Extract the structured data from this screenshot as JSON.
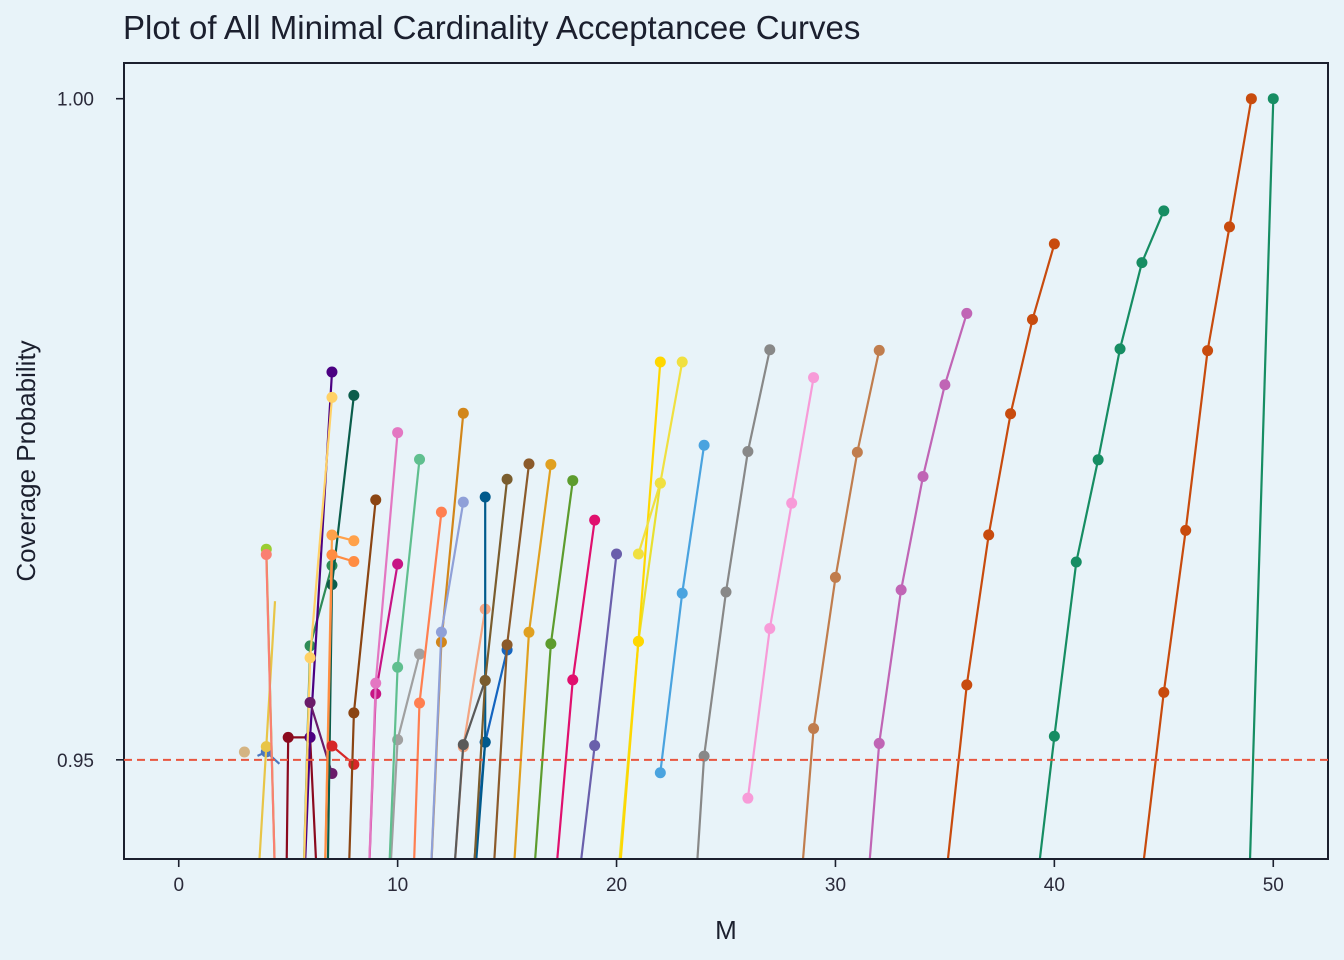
{
  "chart_data": {
    "type": "line",
    "title": "Plot of All Minimal Cardinality Acceptancee Curves",
    "xlabel": "M",
    "ylabel": "Coverage Probability",
    "xlim": [
      -2.5,
      52.5
    ],
    "ylim": [
      0.9425,
      1.0027
    ],
    "xticks": [
      0,
      10,
      20,
      30,
      40,
      50
    ],
    "yticks": [
      0.95,
      1.0
    ],
    "ytick_labels": [
      "0.95",
      "1.00"
    ],
    "reference_line": {
      "y": 0.95,
      "color": "#e8563f",
      "style": "dashed"
    },
    "grid": false,
    "legend": false,
    "series": [
      {
        "color": "#d4b483",
        "x": [
          3
        ],
        "y": [
          0.95059
        ]
      },
      {
        "color": "#4b77be",
        "x": [
          3.6,
          4,
          4.6
        ],
        "y": [
          0.9503,
          0.9506,
          0.9497
        ]
      },
      {
        "color": "#e8c547",
        "x": [
          3.6,
          4,
          4.4
        ],
        "y": [
          0.94,
          0.951,
          0.962
        ]
      },
      {
        "color": "#9acd32",
        "x": [
          4,
          4.45
        ],
        "y": [
          0.96593,
          0.938
        ]
      },
      {
        "color": "#fa8072",
        "x": [
          4,
          4.45
        ],
        "y": [
          0.96553,
          0.938
        ]
      },
      {
        "color": "#8b0a1e",
        "x": [
          4.9,
          5,
          6,
          6.4
        ],
        "y": [
          0.938,
          0.9517,
          0.9517,
          0.938
        ]
      },
      {
        "color": "#2e8b57",
        "x": [
          5.6,
          6,
          7
        ],
        "y": [
          0.935,
          0.95862,
          0.96469
        ]
      },
      {
        "color": "#4b0082",
        "x": [
          5.6,
          6,
          7
        ],
        "y": [
          0.935,
          0.95171,
          0.97933
        ]
      },
      {
        "color": "#ffd166",
        "x": [
          5.6,
          6,
          7
        ],
        "y": [
          0.935,
          0.95772,
          0.97741
        ]
      },
      {
        "color": "#6a1b6a",
        "x": [
          6,
          7
        ],
        "y": [
          0.95434,
          0.94897
        ]
      },
      {
        "color": "#0b5d4b",
        "x": [
          6.75,
          7,
          8
        ],
        "y": [
          0.935,
          0.96326,
          0.97756
        ]
      },
      {
        "color": "#ffa14a",
        "x": [
          6.6,
          7,
          8
        ],
        "y": [
          0.935,
          0.967,
          0.96657
        ]
      },
      {
        "color": "#ff8c42",
        "x": [
          6.6,
          7,
          8
        ],
        "y": [
          0.935,
          0.9655,
          0.965
        ]
      },
      {
        "color": "#d62728",
        "x": [
          7,
          8
        ],
        "y": [
          0.95105,
          0.94966
        ]
      },
      {
        "color": "#8b4513",
        "x": [
          7.65,
          8,
          9
        ],
        "y": [
          0.935,
          0.95355,
          0.96966
        ]
      },
      {
        "color": "#c71585",
        "x": [
          8.55,
          9,
          10
        ],
        "y": [
          0.935,
          0.955,
          0.96481
        ]
      },
      {
        "color": "#e377c2",
        "x": [
          8.55,
          9,
          10
        ],
        "y": [
          0.935,
          0.9558,
          0.97475
        ]
      },
      {
        "color": "#a0a0a0",
        "x": [
          9.45,
          10,
          11
        ],
        "y": [
          0.935,
          0.95152,
          0.958
        ]
      },
      {
        "color": "#5fbf8f",
        "x": [
          9.45,
          10,
          11
        ],
        "y": [
          0.935,
          0.957,
          0.97272
        ]
      },
      {
        "color": "#ff7f50",
        "x": [
          10.6,
          11,
          12
        ],
        "y": [
          0.935,
          0.9543,
          0.96873
        ]
      },
      {
        "color": "#d2861a",
        "x": [
          11.35,
          12,
          13
        ],
        "y": [
          0.935,
          0.9589,
          0.97621
        ]
      },
      {
        "color": "#8fa0d8",
        "x": [
          11.35,
          12,
          13
        ],
        "y": [
          0.935,
          0.95966,
          0.96949
        ]
      },
      {
        "color": "#f4a582",
        "x": [
          12.3,
          13,
          14
        ],
        "y": [
          0.935,
          0.95098,
          0.9614
        ]
      },
      {
        "color": "#5a5a5a",
        "x": [
          12.3,
          13,
          14
        ],
        "y": [
          0.935,
          0.95115,
          0.956
        ]
      },
      {
        "color": "#1565c0",
        "x": [
          13.1,
          14,
          15
        ],
        "y": [
          0.935,
          0.95134,
          0.95831
        ]
      },
      {
        "color": "#005a8c",
        "x": [
          13.25,
          14,
          14
        ],
        "y": [
          0.935,
          0.95134,
          0.96988
        ]
      },
      {
        "color": "#7a5d2e",
        "x": [
          13.25,
          14,
          15
        ],
        "y": [
          0.935,
          0.956,
          0.97122
        ]
      },
      {
        "color": "#8b5a2b",
        "x": [
          14.15,
          15,
          16
        ],
        "y": [
          0.935,
          0.9587,
          0.97238
        ]
      },
      {
        "color": "#e0a020",
        "x": [
          15.05,
          16,
          17
        ],
        "y": [
          0.935,
          0.95965,
          0.97234
        ]
      },
      {
        "color": "#5d9c2e",
        "x": [
          15.95,
          17,
          18
        ],
        "y": [
          0.935,
          0.95878,
          0.97112
        ]
      },
      {
        "color": "#e0106e",
        "x": [
          16.9,
          18,
          19
        ],
        "y": [
          0.935,
          0.95605,
          0.96813
        ]
      },
      {
        "color": "#6a5fab",
        "x": [
          17.85,
          19,
          20
        ],
        "y": [
          0.935,
          0.95108,
          0.96557
        ]
      },
      {
        "color": "#e8e030",
        "x": [
          19.75,
          21,
          22
        ],
        "y": [
          0.935,
          0.95896,
          0.97093
        ]
      },
      {
        "color": "#ffd700",
        "x": [
          20,
          21,
          22
        ],
        "y": [
          0.9385,
          0.95896,
          0.98009
        ]
      },
      {
        "color": "#f0e040",
        "x": [
          21,
          22,
          23
        ],
        "y": [
          0.96557,
          0.97093,
          0.98009
        ]
      },
      {
        "color": "#4aa3df",
        "x": [
          22,
          23,
          24
        ],
        "y": [
          0.94902,
          0.9626,
          0.97379
        ]
      },
      {
        "color": "#888888",
        "x": [
          23.4,
          24,
          25,
          26,
          27
        ],
        "y": [
          0.935,
          0.95028,
          0.96269,
          0.97332,
          0.98101
        ]
      },
      {
        "color": "#f79bd8",
        "x": [
          26,
          27,
          28,
          29
        ],
        "y": [
          0.9471,
          0.95993,
          0.96941,
          0.97891
        ]
      },
      {
        "color": "#c07d4e",
        "x": [
          28.15,
          29,
          30,
          31,
          32
        ],
        "y": [
          0.935,
          0.95237,
          0.9638,
          0.97326,
          0.98097
        ]
      },
      {
        "color": "#c065b5",
        "x": [
          31.2,
          32,
          33,
          34,
          35,
          36
        ],
        "y": [
          0.935,
          0.95124,
          0.96285,
          0.97143,
          0.97837,
          0.98376
        ]
      },
      {
        "color": "#c84b0e",
        "x": [
          34.65,
          36,
          37,
          38,
          39,
          40
        ],
        "y": [
          0.935,
          0.95567,
          0.96701,
          0.97617,
          0.9833,
          0.98902
        ]
      },
      {
        "color": "#168d63",
        "x": [
          38.8,
          40,
          41,
          42,
          43,
          44,
          45
        ],
        "y": [
          0.935,
          0.95178,
          0.96496,
          0.97269,
          0.98108,
          0.9876,
          0.99152
        ]
      },
      {
        "color": "#c84b0e",
        "x": [
          43.55,
          45,
          46,
          47,
          48,
          49
        ],
        "y": [
          0.935,
          0.9551,
          0.96735,
          0.98095,
          0.99031,
          1.0
        ]
      },
      {
        "color": "#168d63",
        "x": [
          48.8,
          50
        ],
        "y": [
          0.935,
          1.0
        ]
      }
    ]
  }
}
